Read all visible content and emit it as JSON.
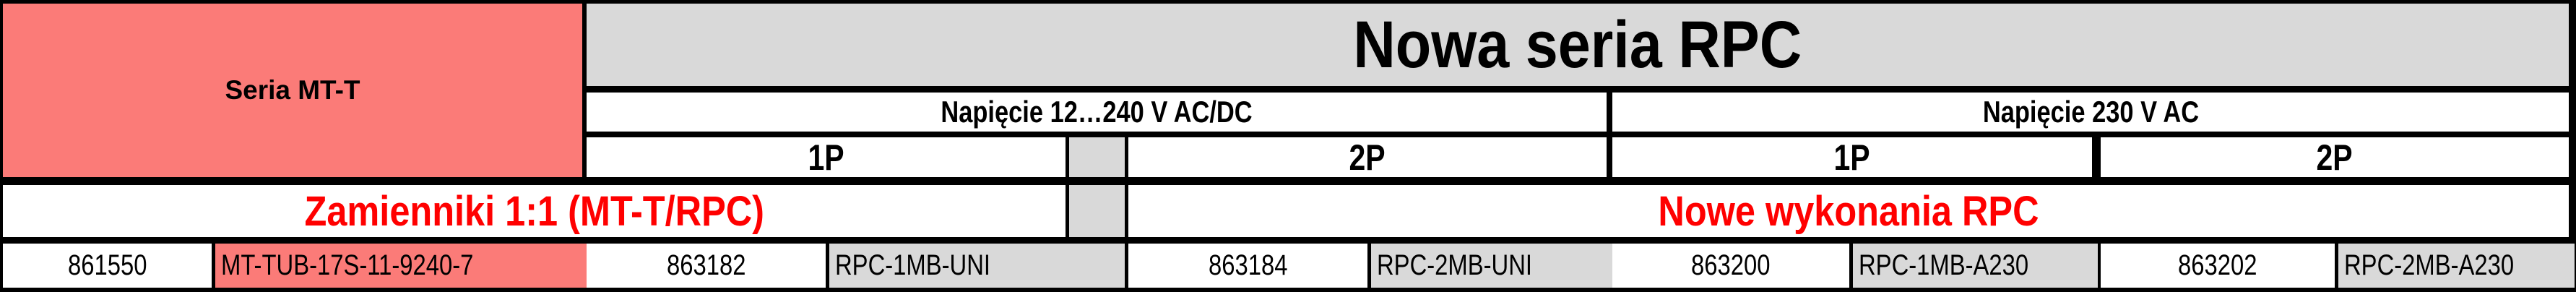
{
  "table": {
    "left_header": "Seria MT-T",
    "main_header": "Nowa seria RPC",
    "voltage_groups": [
      {
        "label": "Napięcie 12…240 V AC/DC"
      },
      {
        "label": "Napięcie 230 V AC"
      }
    ],
    "pole_headers": [
      "1P",
      "2P",
      "1P",
      "2P"
    ],
    "replacements_label": "Zamienniki 1:1 (MT-T/RPC)",
    "new_versions_label": "Nowe wykonania RPC",
    "mtt_product": {
      "code": "861550",
      "name": "MT-TUB-17S-11-9240-7"
    },
    "rpc_products": [
      {
        "code": "863182",
        "name": "RPC-1MB-UNI"
      },
      {
        "code": "863184",
        "name": "RPC-2MB-UNI"
      },
      {
        "code": "863200",
        "name": "RPC-1MB-A230"
      },
      {
        "code": "863202",
        "name": "RPC-2MB-A230"
      }
    ]
  },
  "colors": {
    "salmon": "#FB7B78",
    "gray": "#D9D9D9",
    "red_text": "#FF0000",
    "border": "#000000",
    "white": "#FFFFFF"
  }
}
